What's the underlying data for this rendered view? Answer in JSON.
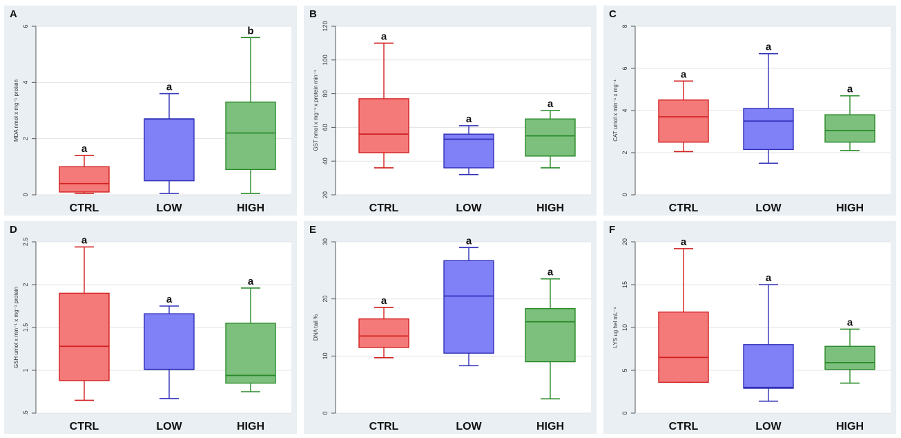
{
  "chart_data": [
    {
      "panel": "A",
      "type": "box",
      "ylabel": "MDA nmol x mg⁻¹ protein",
      "ylim": [
        0,
        6
      ],
      "yticks": [
        0,
        2,
        4,
        6
      ],
      "grid": true,
      "categories": [
        "CTRL",
        "LOW",
        "HIGH"
      ],
      "colors": [
        "#f47a7a",
        "#8080f7",
        "#7dbf7d"
      ],
      "line_colors": [
        "#d22020",
        "#3030b8",
        "#2a8a2a"
      ],
      "boxes": [
        {
          "whisker_low": 0.05,
          "q1": 0.1,
          "median": 0.4,
          "q3": 1.0,
          "whisker_high": 1.4,
          "letter": "a"
        },
        {
          "whisker_low": 0.05,
          "q1": 0.5,
          "median": 2.7,
          "q3": 2.7,
          "whisker_high": 3.6,
          "letter": "a"
        },
        {
          "whisker_low": 0.05,
          "q1": 0.9,
          "median": 2.2,
          "q3": 3.3,
          "whisker_high": 5.6,
          "letter": "b"
        }
      ]
    },
    {
      "panel": "B",
      "type": "box",
      "ylabel": "GST nmol x mg⁻¹ x protein min⁻¹",
      "ylim": [
        20,
        120
      ],
      "yticks": [
        20,
        40,
        60,
        80,
        100,
        120
      ],
      "grid": true,
      "categories": [
        "CTRL",
        "LOW",
        "HIGH"
      ],
      "colors": [
        "#f47a7a",
        "#8080f7",
        "#7dbf7d"
      ],
      "line_colors": [
        "#d22020",
        "#3030b8",
        "#2a8a2a"
      ],
      "boxes": [
        {
          "whisker_low": 36,
          "q1": 45,
          "median": 56,
          "q3": 77,
          "whisker_high": 110,
          "letter": "a"
        },
        {
          "whisker_low": 32,
          "q1": 36,
          "median": 53,
          "q3": 56,
          "whisker_high": 61,
          "letter": "a"
        },
        {
          "whisker_low": 36,
          "q1": 43,
          "median": 55,
          "q3": 65,
          "whisker_high": 70,
          "letter": "a"
        }
      ]
    },
    {
      "panel": "C",
      "type": "box",
      "ylabel": "CAT umol x min⁻¹ x mg⁻¹",
      "ylim": [
        0,
        8
      ],
      "yticks": [
        0,
        2,
        4,
        6,
        8
      ],
      "grid": true,
      "categories": [
        "CTRL",
        "LOW",
        "HIGH"
      ],
      "colors": [
        "#f47a7a",
        "#8080f7",
        "#7dbf7d"
      ],
      "line_colors": [
        "#d22020",
        "#3030b8",
        "#2a8a2a"
      ],
      "boxes": [
        {
          "whisker_low": 2.05,
          "q1": 2.5,
          "median": 3.7,
          "q3": 4.5,
          "whisker_high": 5.4,
          "letter": "a"
        },
        {
          "whisker_low": 1.5,
          "q1": 2.15,
          "median": 3.5,
          "q3": 4.1,
          "whisker_high": 6.7,
          "letter": "a"
        },
        {
          "whisker_low": 2.1,
          "q1": 2.5,
          "median": 3.05,
          "q3": 3.8,
          "whisker_high": 4.7,
          "letter": "a"
        }
      ]
    },
    {
      "panel": "D",
      "type": "box",
      "ylabel": "GSH umol x min⁻¹ x mg⁻¹ protein",
      "ylim": [
        0.5,
        2.5
      ],
      "yticks": [
        0.5,
        1,
        1.5,
        2,
        2.5
      ],
      "yticklabels": [
        ".5",
        "1",
        "1.5",
        "2",
        "2.5"
      ],
      "grid": true,
      "categories": [
        "CTRL",
        "LOW",
        "HIGH"
      ],
      "colors": [
        "#f47a7a",
        "#8080f7",
        "#7dbf7d"
      ],
      "line_colors": [
        "#d22020",
        "#3030b8",
        "#2a8a2a"
      ],
      "boxes": [
        {
          "whisker_low": 0.65,
          "q1": 0.88,
          "median": 1.28,
          "q3": 1.9,
          "whisker_high": 2.44,
          "letter": "a"
        },
        {
          "whisker_low": 0.67,
          "q1": 1.01,
          "median": 1.01,
          "q3": 1.66,
          "whisker_high": 1.75,
          "letter": "a"
        },
        {
          "whisker_low": 0.75,
          "q1": 0.85,
          "median": 0.94,
          "q3": 1.55,
          "whisker_high": 1.96,
          "letter": "a"
        }
      ]
    },
    {
      "panel": "E",
      "type": "box",
      "ylabel": "DNA tail %",
      "ylim": [
        0,
        30
      ],
      "yticks": [
        0,
        10,
        20,
        30
      ],
      "grid": true,
      "categories": [
        "CTRL",
        "LOW",
        "HIGH"
      ],
      "colors": [
        "#f47a7a",
        "#8080f7",
        "#7dbf7d"
      ],
      "line_colors": [
        "#d22020",
        "#3030b8",
        "#2a8a2a"
      ],
      "boxes": [
        {
          "whisker_low": 9.7,
          "q1": 11.5,
          "median": 13.5,
          "q3": 16.5,
          "whisker_high": 18.5,
          "letter": "a"
        },
        {
          "whisker_low": 8.3,
          "q1": 10.5,
          "median": 20.5,
          "q3": 26.7,
          "whisker_high": 29.0,
          "letter": "a"
        },
        {
          "whisker_low": 2.5,
          "q1": 9.0,
          "median": 16.0,
          "q3": 18.3,
          "whisker_high": 23.5,
          "letter": "a"
        }
      ]
    },
    {
      "panel": "F",
      "type": "box",
      "ylabel": "LYS ug hel mL⁻¹",
      "ylim": [
        0,
        20
      ],
      "yticks": [
        0,
        5,
        10,
        15,
        20
      ],
      "grid": true,
      "categories": [
        "CTRL",
        "LOW",
        "HIGH"
      ],
      "colors": [
        "#f47a7a",
        "#8080f7",
        "#7dbf7d"
      ],
      "line_colors": [
        "#d22020",
        "#3030b8",
        "#2a8a2a"
      ],
      "boxes": [
        {
          "whisker_low": 3.6,
          "q1": 3.6,
          "median": 6.5,
          "q3": 11.8,
          "whisker_high": 19.2,
          "letter": "a"
        },
        {
          "whisker_low": 1.4,
          "q1": 2.9,
          "median": 3.0,
          "q3": 8.0,
          "whisker_high": 15.0,
          "letter": "a"
        },
        {
          "whisker_low": 3.5,
          "q1": 5.1,
          "median": 5.9,
          "q3": 7.8,
          "whisker_high": 9.8,
          "letter": "a"
        }
      ]
    }
  ]
}
